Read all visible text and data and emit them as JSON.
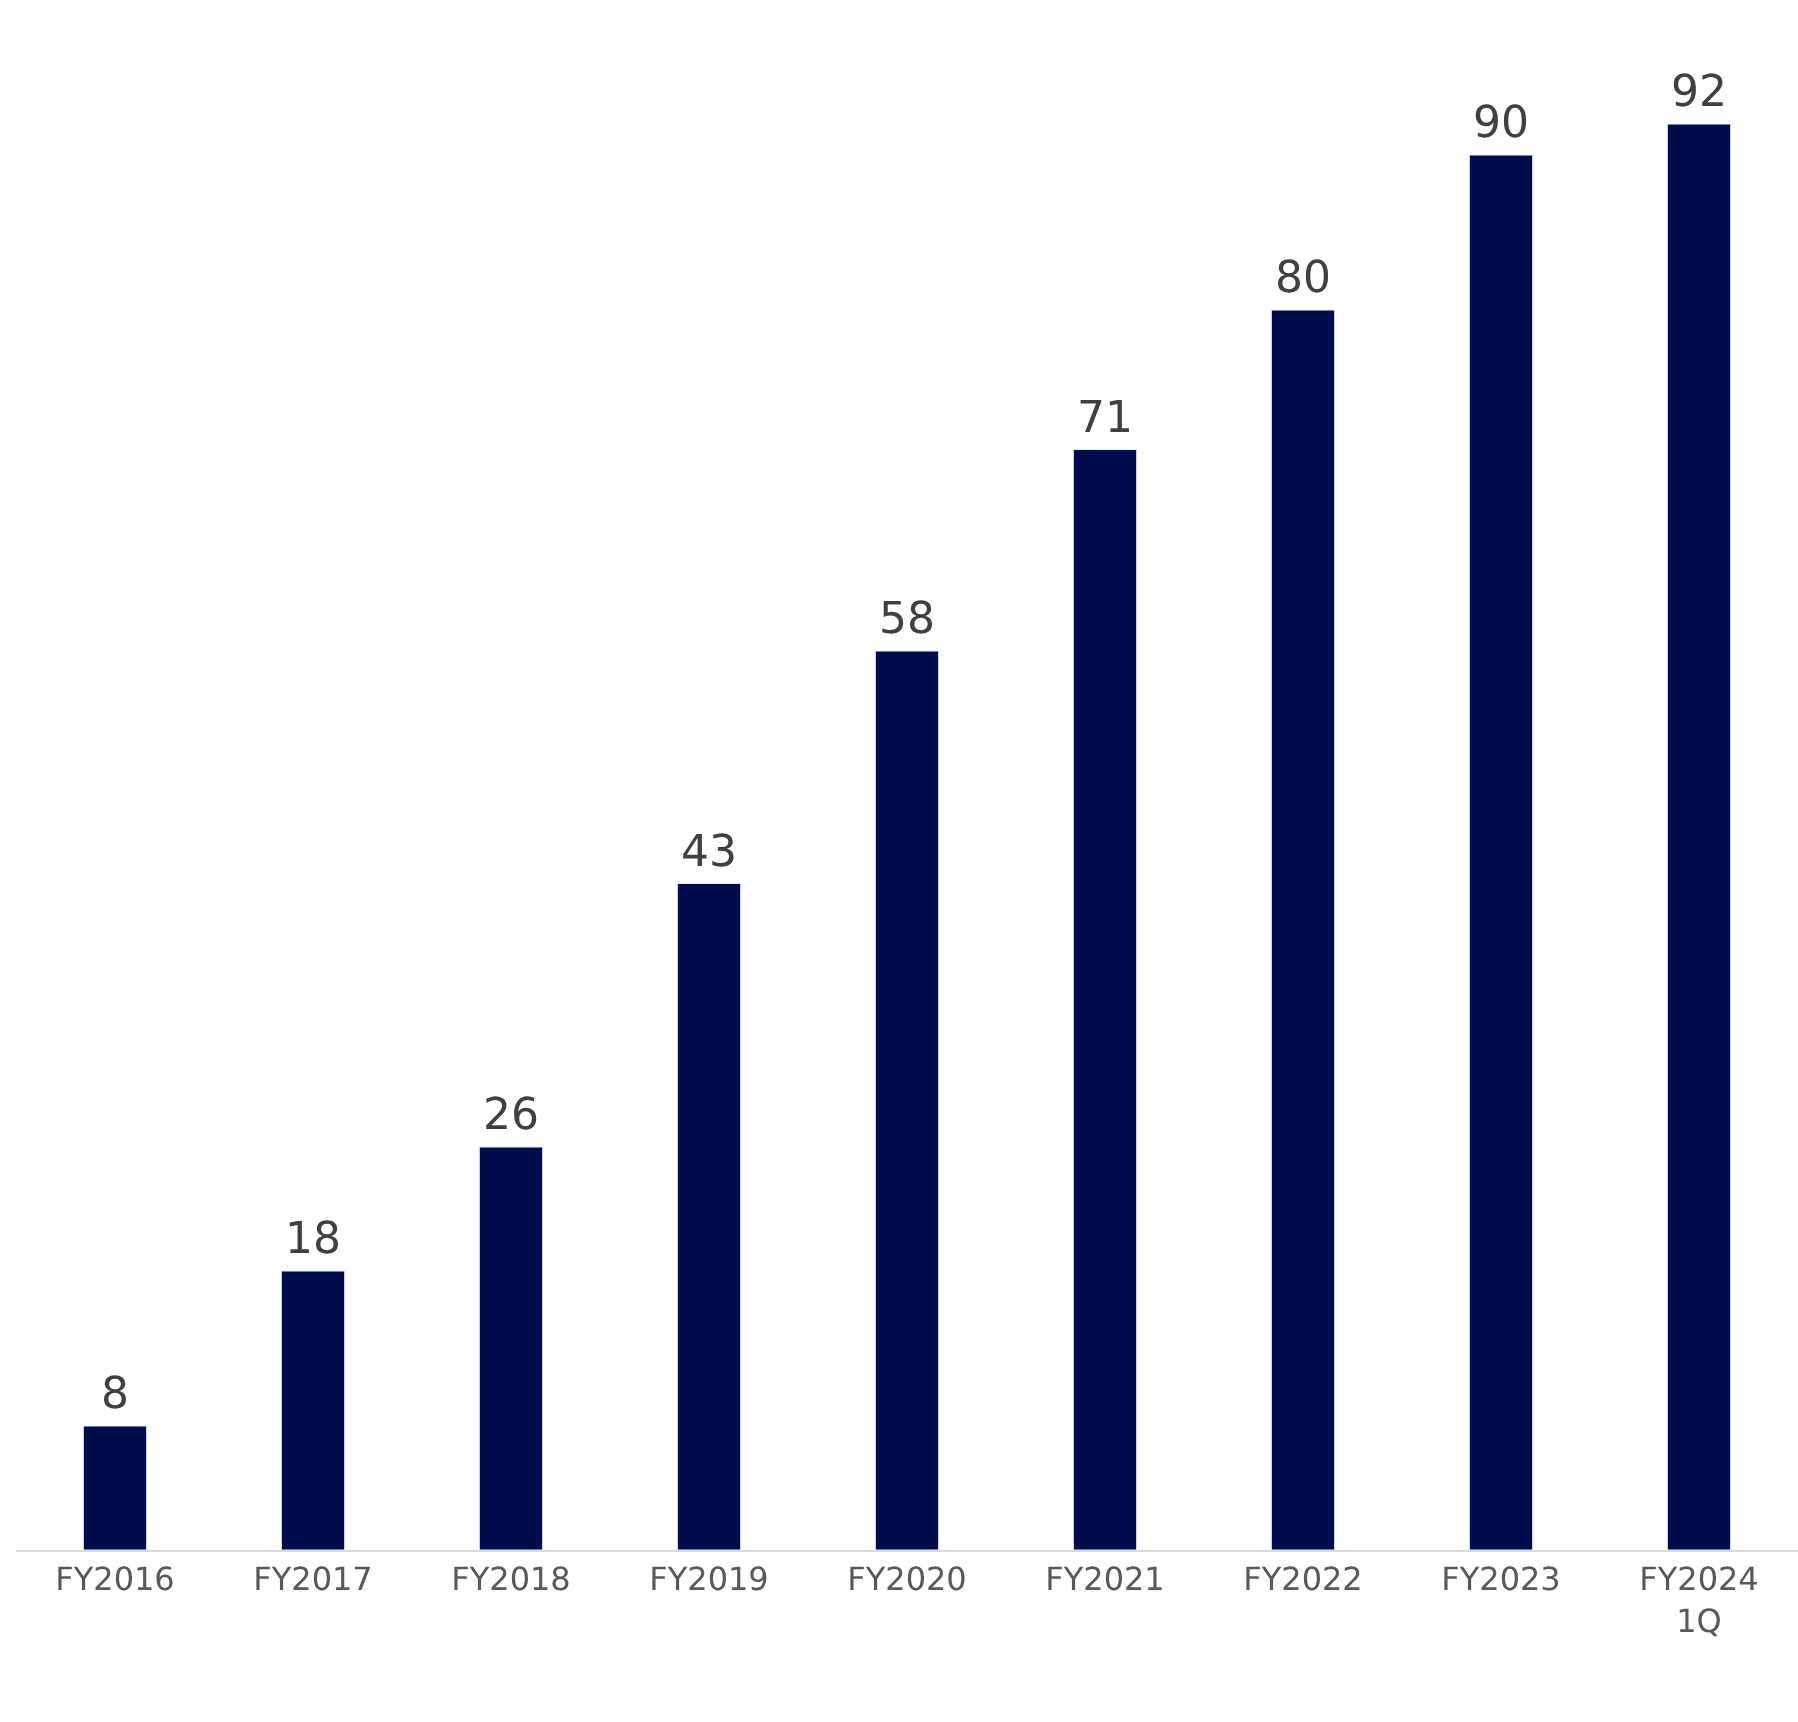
{
  "chart_data": {
    "type": "bar",
    "categories": [
      "FY2016",
      "FY2017",
      "FY2018",
      "FY2019",
      "FY2020",
      "FY2021",
      "FY2022",
      "FY2023",
      "FY2024\n1Q"
    ],
    "values": [
      8,
      18,
      26,
      43,
      58,
      71,
      80,
      90,
      92
    ],
    "color": "#000c4b",
    "data_labels": true
  }
}
